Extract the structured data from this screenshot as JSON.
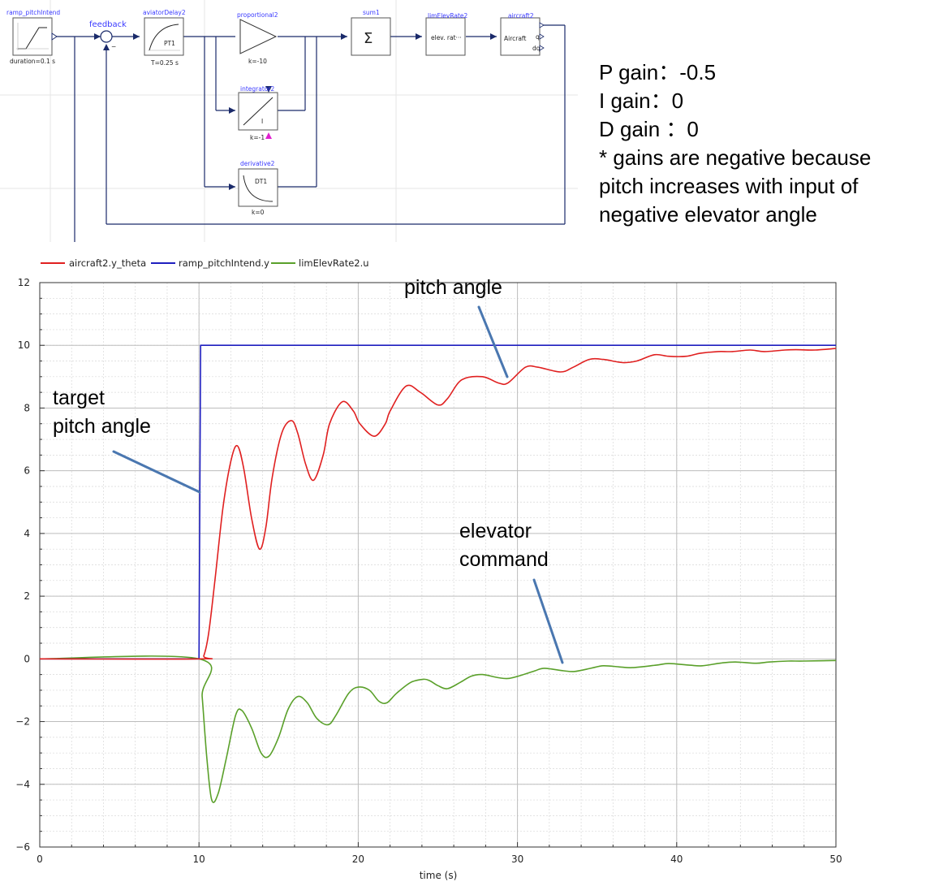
{
  "diagram": {
    "blocks": {
      "ramp": {
        "title": "ramp_pitchIntend",
        "param": "duration=0.1 s"
      },
      "aviator": {
        "title": "aviatorDelay2",
        "param": "T=0.25 s",
        "inner": "PT1"
      },
      "proportional": {
        "title": "proportional2",
        "param": "k=-10"
      },
      "integrator": {
        "title": "integrator2",
        "param": "k=-1",
        "inner": "I"
      },
      "derivative": {
        "title": "derivative2",
        "param": "k=0",
        "inner": "DT1"
      },
      "sum": {
        "title": "sum1",
        "symbol": "Σ"
      },
      "limiter": {
        "title": "limElevRate2",
        "inner": "elev. rat···"
      },
      "aircraft": {
        "title": "aircraft2",
        "inner": "Aircraft",
        "port_q": "q",
        "port_dq": "dq"
      }
    },
    "feedback_label": "feedback",
    "feedback_sign": "−"
  },
  "notes": {
    "p_gain": "P gain：-0.5",
    "i_gain": "I gain：0",
    "d_gain": "D gain ：0",
    "note_line1": "* gains are negative because",
    "note_line2": "pitch increases with input of",
    "note_line3": "negative elevator angle"
  },
  "annotations": {
    "pitch": "pitch angle",
    "target1": "target",
    "target2": "pitch angle",
    "elev1": "elevator",
    "elev2": "command"
  },
  "chart_data": {
    "type": "line",
    "xlabel": "time (s)",
    "ylabel": "",
    "xlim": [
      0,
      50
    ],
    "ylim": [
      -6,
      12
    ],
    "x_ticks": [
      "0",
      "10",
      "20",
      "30",
      "40",
      "50"
    ],
    "y_ticks": [
      "−6",
      "−4",
      "−2",
      "0",
      "2",
      "4",
      "6",
      "8",
      "10",
      "12"
    ],
    "grid": true,
    "legend_position": "top-left",
    "series": [
      {
        "name": "aircraft2.y_theta",
        "color": "#e02020",
        "x": [
          0,
          10,
          10.3,
          10.6,
          11,
          11.5,
          12,
          12.4,
          12.8,
          13.3,
          13.8,
          14.2,
          14.6,
          15.2,
          15.8,
          16.2,
          16.7,
          17.2,
          17.8,
          18.2,
          19,
          19.7,
          20.1,
          21,
          21.7,
          22,
          23,
          23.9,
          25,
          25.6,
          26.5,
          27.8,
          28.8,
          29.4,
          30.5,
          31.3,
          32.7,
          33.5,
          34.5,
          35.4,
          36.6,
          37.5,
          38.6,
          39.5,
          40.6,
          41.5,
          42.6,
          43.5,
          44.6,
          45.5,
          46.8,
          47.5,
          48.7,
          50
        ],
        "y": [
          0,
          0,
          0.1,
          0.8,
          2.5,
          4.8,
          6.3,
          6.8,
          6.1,
          4.5,
          3.5,
          4.2,
          5.8,
          7.2,
          7.6,
          7.2,
          6.2,
          5.7,
          6.5,
          7.5,
          8.2,
          7.9,
          7.5,
          7.1,
          7.5,
          7.9,
          8.7,
          8.5,
          8.1,
          8.3,
          8.9,
          9.0,
          8.8,
          8.8,
          9.3,
          9.3,
          9.15,
          9.3,
          9.55,
          9.55,
          9.45,
          9.5,
          9.7,
          9.65,
          9.65,
          9.75,
          9.8,
          9.8,
          9.85,
          9.8,
          9.85,
          9.86,
          9.85,
          9.9
        ]
      },
      {
        "name": "ramp_pitchIntend.y",
        "color": "#1f1fbf",
        "x": [
          0,
          10,
          10.1,
          50
        ],
        "y": [
          0,
          0,
          10,
          10
        ]
      },
      {
        "name": "limElevRate2.u",
        "color": "#5aa02a",
        "x": [
          0,
          10,
          10.2,
          10.5,
          10.8,
          11.2,
          11.7,
          12.3,
          12.7,
          13.3,
          13.9,
          14.4,
          15,
          15.6,
          16.2,
          16.8,
          17.4,
          18.1,
          18.6,
          19.4,
          20,
          20.7,
          21.3,
          21.8,
          22.4,
          23.3,
          24.1,
          24.5,
          25,
          25.6,
          26.4,
          27.1,
          27.8,
          28.8,
          29.5,
          30.5,
          31.1,
          31.7,
          32.9,
          33.6,
          34.6,
          35.4,
          36.5,
          37.2,
          38.7,
          39.5,
          40.8,
          41.6,
          42.8,
          43.7,
          45,
          45.8,
          47,
          48,
          50
        ],
        "y": [
          0,
          0,
          -1.2,
          -3.2,
          -4.5,
          -4.3,
          -3.2,
          -1.8,
          -1.65,
          -2.2,
          -3.0,
          -3.1,
          -2.5,
          -1.6,
          -1.2,
          -1.4,
          -1.9,
          -2.1,
          -1.8,
          -1.1,
          -0.9,
          -1.0,
          -1.35,
          -1.4,
          -1.1,
          -0.75,
          -0.65,
          -0.7,
          -0.85,
          -0.95,
          -0.75,
          -0.55,
          -0.5,
          -0.6,
          -0.62,
          -0.48,
          -0.38,
          -0.3,
          -0.38,
          -0.4,
          -0.3,
          -0.22,
          -0.26,
          -0.28,
          -0.2,
          -0.15,
          -0.2,
          -0.22,
          -0.13,
          -0.1,
          -0.14,
          -0.1,
          -0.07,
          -0.07,
          -0.05
        ]
      }
    ]
  }
}
